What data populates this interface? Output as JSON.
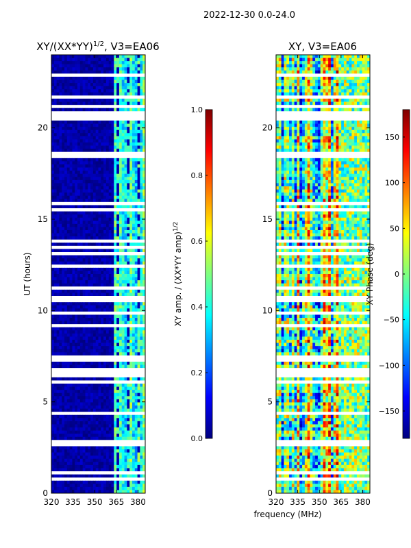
{
  "suptitle": "2022-12-30 0.0-24.0",
  "shared_xlabel": "frequency (MHz)",
  "palette": [
    "#00007f",
    "#0000ff",
    "#007fff",
    "#00ffff",
    "#7fff7f",
    "#ffff00",
    "#ff7f00",
    "#ff0000",
    "#7f0000"
  ],
  "chart_data": [
    {
      "type": "heatmap",
      "title_main": "XY/(XX*YY)",
      "title_sup": "1/2",
      "title_rest": ", V3=EA06",
      "xlabel": "",
      "ylabel": "UT (hours)",
      "xlim": [
        320,
        385
      ],
      "ylim": [
        0,
        24
      ],
      "xticks": [
        320,
        335,
        350,
        365,
        380
      ],
      "yticks": [
        0,
        5,
        10,
        15,
        20
      ],
      "colorbar": {
        "label_main": "XY amp. / (XX*YY amp)",
        "label_sup": "1/2",
        "min": 0.0,
        "max": 1.0,
        "ticks": [
          "0.0",
          "0.2",
          "0.4",
          "0.6",
          "0.8",
          "1.0"
        ]
      },
      "description_values": {
        "low_band_value_range": [
          0.0,
          0.1
        ],
        "high_band_start_mhz": 362,
        "high_band_value_range": [
          0.2,
          0.6
        ]
      }
    },
    {
      "type": "heatmap",
      "title_main": "XY, V3=EA06",
      "xlabel": "",
      "ylabel": "",
      "xlim": [
        320,
        385
      ],
      "ylim": [
        0,
        24
      ],
      "xticks": [
        320,
        335,
        350,
        365,
        380
      ],
      "yticks": [
        0,
        5,
        10,
        15,
        20
      ],
      "colorbar": {
        "label_main": "XY Phase (deg)",
        "min": -180,
        "max": 180,
        "ticks": [
          "150",
          "100",
          "50",
          "0",
          "−50",
          "−100",
          "−150"
        ],
        "tick_values": [
          150,
          100,
          50,
          0,
          -50,
          -100,
          -150
        ]
      }
    }
  ]
}
